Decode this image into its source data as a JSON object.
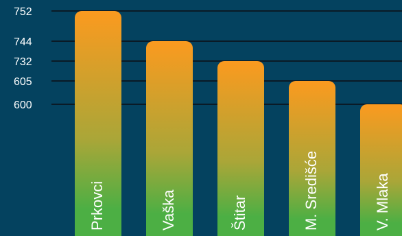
{
  "chart_data": {
    "type": "bar",
    "title": "",
    "xlabel": "",
    "ylabel": "",
    "categories": [
      "Prkovci",
      "Vaška",
      "Štitar",
      "M. Središće",
      "V. Mlaka"
    ],
    "values": [
      752,
      744,
      732,
      605,
      600
    ],
    "y_ticks": [
      "752",
      "744",
      "732",
      "605",
      "600"
    ],
    "grid": true,
    "colors": {
      "background": "#04425f",
      "bar_top": "#fb9a1f",
      "bar_bottom": "#4caf44",
      "grid": "#0a1a26"
    }
  }
}
